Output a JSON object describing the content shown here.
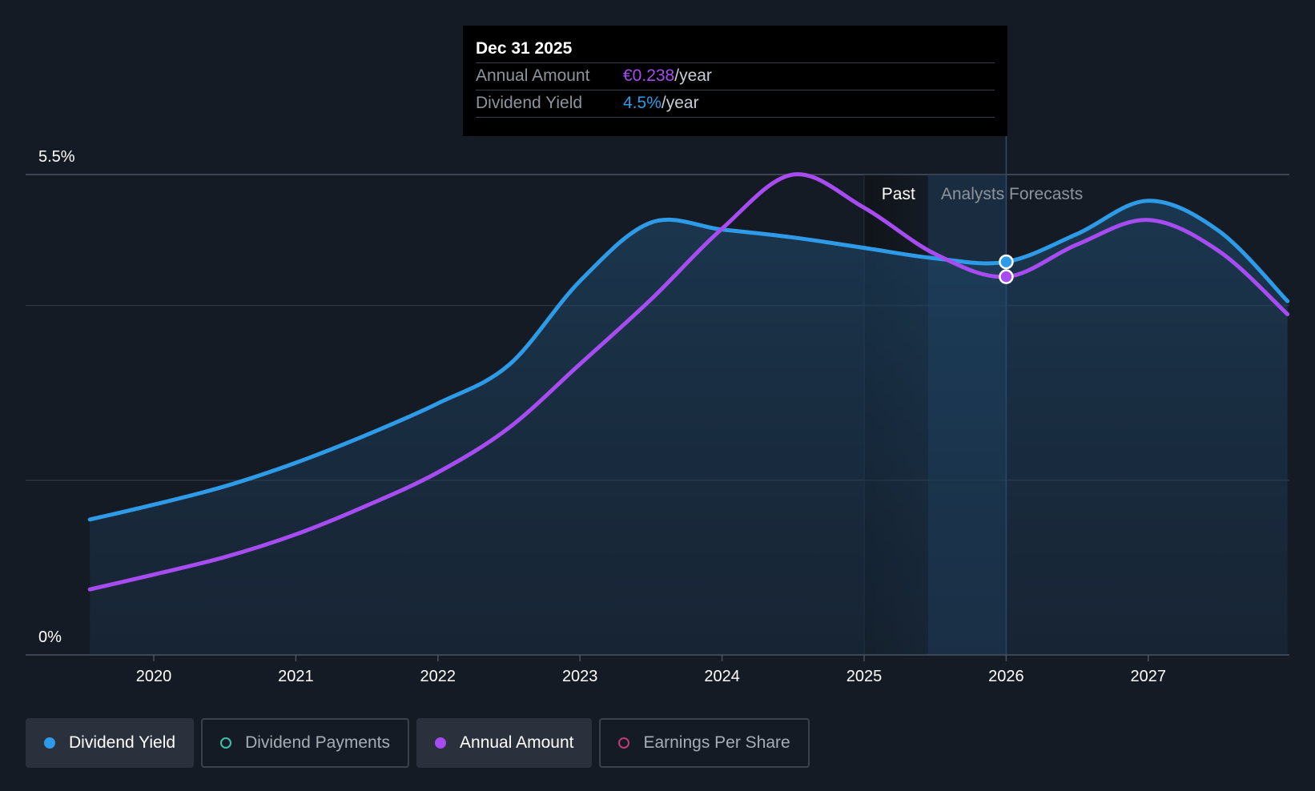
{
  "chart_data": {
    "type": "line",
    "x_ticks": [
      "2020",
      "2021",
      "2022",
      "2023",
      "2024",
      "2025",
      "2026",
      "2027"
    ],
    "y_ticks": [
      "0%",
      "5.5%"
    ],
    "ylim": [
      0,
      5.5
    ],
    "regions": {
      "past_label": "Past",
      "forecast_label": "Analysts Forecasts"
    },
    "series": [
      {
        "name": "Dividend Yield",
        "color": "#2e9be8",
        "area": true,
        "points": [
          [
            2019.55,
            1.55
          ],
          [
            2020.0,
            1.72
          ],
          [
            2020.5,
            1.93
          ],
          [
            2021.0,
            2.2
          ],
          [
            2021.5,
            2.52
          ],
          [
            2022.0,
            2.88
          ],
          [
            2022.5,
            3.32
          ],
          [
            2023.0,
            4.28
          ],
          [
            2023.5,
            4.95
          ],
          [
            2024.0,
            4.87
          ],
          [
            2024.5,
            4.78
          ],
          [
            2025.0,
            4.66
          ],
          [
            2025.5,
            4.54
          ],
          [
            2026.0,
            4.5
          ],
          [
            2026.5,
            4.82
          ],
          [
            2027.0,
            5.2
          ],
          [
            2027.5,
            4.85
          ],
          [
            2027.98,
            4.05
          ]
        ]
      },
      {
        "name": "Annual Amount",
        "color": "#a64cf0",
        "area": false,
        "points": [
          [
            2019.55,
            0.75
          ],
          [
            2020.0,
            0.92
          ],
          [
            2020.5,
            1.12
          ],
          [
            2021.0,
            1.38
          ],
          [
            2021.5,
            1.71
          ],
          [
            2022.0,
            2.09
          ],
          [
            2022.5,
            2.6
          ],
          [
            2023.0,
            3.33
          ],
          [
            2023.5,
            4.07
          ],
          [
            2024.0,
            4.88
          ],
          [
            2024.5,
            5.5
          ],
          [
            2025.0,
            5.12
          ],
          [
            2025.5,
            4.59
          ],
          [
            2026.0,
            4.33
          ],
          [
            2026.5,
            4.7
          ],
          [
            2027.0,
            4.98
          ],
          [
            2027.5,
            4.62
          ],
          [
            2027.98,
            3.9
          ]
        ]
      }
    ],
    "highlight": {
      "x": 2026.0,
      "yield": 4.5,
      "amount": 4.33
    }
  },
  "tooltip": {
    "date": "Dec 31 2025",
    "rows": [
      {
        "label": "Annual Amount",
        "value": "€0.238",
        "unit": "/year"
      },
      {
        "label": "Dividend Yield",
        "value": "4.5%",
        "unit": "/year"
      }
    ]
  },
  "legend": [
    {
      "label": "Dividend Yield",
      "color": "#2e9be8",
      "active": true,
      "filled": true
    },
    {
      "label": "Dividend Payments",
      "color": "#3fbfae",
      "active": false,
      "filled": false
    },
    {
      "label": "Annual Amount",
      "color": "#a64cf0",
      "active": true,
      "filled": true
    },
    {
      "label": "Earnings Per Share",
      "color": "#c23a7a",
      "active": false,
      "filled": false
    }
  ]
}
